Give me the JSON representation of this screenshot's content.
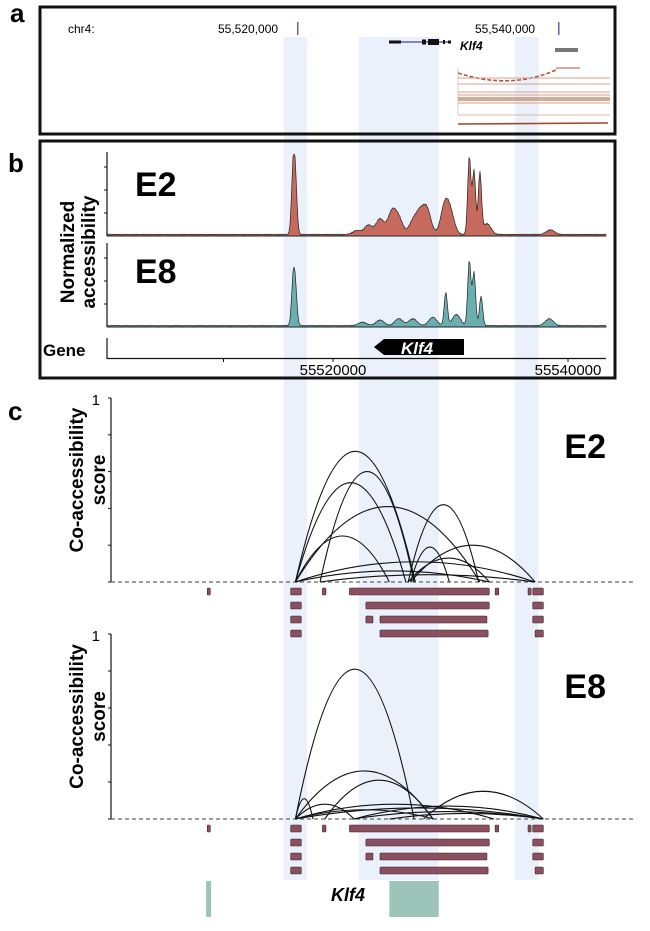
{
  "figure": {
    "panels": [
      "a",
      "b",
      "c"
    ],
    "highlight_color": "#eaf1fa",
    "highlight_regions_bp": [
      [
        55515800,
        55517800
      ],
      [
        55522200,
        55529000
      ],
      [
        55535500,
        55537500
      ]
    ]
  },
  "panel_a": {
    "letter": "a",
    "chrom_label": "chr4:",
    "coord_labels": [
      "55,520,000",
      "55,540,000"
    ],
    "coord_values": [
      55520000,
      55540000
    ],
    "gene_label": "Klf4",
    "track_color": "#b5523b",
    "tick_color": "#6a5fb0"
  },
  "panel_b": {
    "letter": "b",
    "ylabel_line1": "Normalized",
    "ylabel_line2": "accessibility",
    "gene_row_label": "Gene",
    "gene_label": "Klf4",
    "x_ticks": [
      "55520000",
      "55540000"
    ],
    "x_tick_values": [
      55520000,
      55540000
    ],
    "x_range": [
      55510000,
      55544000
    ],
    "tracks": [
      {
        "name": "E2",
        "color": "#c76a5e",
        "peaks": [
          [
            55516600,
            0.78
          ],
          [
            55516800,
            0.65
          ],
          [
            55522000,
            0.05
          ],
          [
            55523000,
            0.12
          ],
          [
            55524000,
            0.2
          ],
          [
            55525000,
            0.28
          ],
          [
            55525600,
            0.2
          ],
          [
            55526800,
            0.16
          ],
          [
            55527400,
            0.25
          ],
          [
            55528000,
            0.31
          ],
          [
            55529500,
            0.35
          ],
          [
            55530000,
            0.25
          ],
          [
            55531600,
            1.0
          ],
          [
            55532000,
            0.82
          ],
          [
            55532500,
            0.78
          ],
          [
            55533100,
            0.14
          ],
          [
            55538500,
            0.06
          ]
        ]
      },
      {
        "name": "E8",
        "color": "#6aaeb0",
        "peaks": [
          [
            55516600,
            0.6
          ],
          [
            55516800,
            0.5
          ],
          [
            55522500,
            0.05
          ],
          [
            55524000,
            0.08
          ],
          [
            55525600,
            0.1
          ],
          [
            55526800,
            0.1
          ],
          [
            55528500,
            0.12
          ],
          [
            55529600,
            0.47
          ],
          [
            55530500,
            0.16
          ],
          [
            55531600,
            0.93
          ],
          [
            55532000,
            0.76
          ],
          [
            55532600,
            0.42
          ],
          [
            55538400,
            0.1
          ]
        ]
      }
    ]
  },
  "panel_c": {
    "letter": "c",
    "ylabel_line1": "Co-accessibility",
    "ylabel_line2": "score",
    "y_top_tick": "1",
    "ylim": [
      0,
      1
    ],
    "y_ticks": [
      0,
      0.2,
      0.4,
      0.6,
      0.8,
      1.0
    ],
    "arc_color": "#111111",
    "peak_color": "#8b5060",
    "plots": [
      {
        "name": "E2",
        "arcs": [
          [
            55516800,
            55527000,
            0.71
          ],
          [
            55516800,
            55526200,
            0.54
          ],
          [
            55518900,
            55526900,
            0.6
          ],
          [
            55516800,
            55532500,
            0.41
          ],
          [
            55516800,
            55524800,
            0.25
          ],
          [
            55526400,
            55532400,
            0.42
          ],
          [
            55526400,
            55533300,
            0.13
          ],
          [
            55526600,
            55537200,
            0.2
          ],
          [
            55516800,
            55537200,
            0.11
          ],
          [
            55516800,
            55533300,
            0.06
          ],
          [
            55518900,
            55537200,
            0.04
          ],
          [
            55526600,
            55529900,
            0.19
          ]
        ],
        "peak_rows": [
          [
            [
              55509300,
              55509500
            ],
            [
              55516400,
              55517300
            ],
            [
              55519100,
              55519400
            ],
            [
              55521400,
              55533300
            ],
            [
              55533800,
              55534100
            ],
            [
              55536600,
              55536800
            ],
            [
              55537000,
              55537900
            ]
          ],
          [
            [
              55516400,
              55517300
            ],
            [
              55522800,
              55533300
            ],
            [
              55537000,
              55537900
            ]
          ],
          [
            [
              55516400,
              55517300
            ],
            [
              55522800,
              55523400
            ],
            [
              55524000,
              55533100
            ],
            [
              55537000,
              55537900
            ]
          ],
          [
            [
              55516400,
              55517300
            ],
            [
              55524000,
              55533200
            ],
            [
              55537200,
              55537900
            ]
          ]
        ]
      },
      {
        "name": "E8",
        "arcs": [
          [
            55516800,
            55526900,
            0.81
          ],
          [
            55516800,
            55528500,
            0.26
          ],
          [
            55519300,
            55528500,
            0.21
          ],
          [
            55516800,
            55518300,
            0.11
          ],
          [
            55516800,
            55521800,
            0.08
          ],
          [
            55516800,
            55533700,
            0.08
          ],
          [
            55516800,
            55537900,
            0.06
          ],
          [
            55521700,
            55537900,
            0.04
          ],
          [
            55527700,
            55537900,
            0.15
          ],
          [
            55521800,
            55537900,
            0.07
          ],
          [
            55516800,
            55528600,
            0.05
          ],
          [
            55524800,
            55537900,
            0.03
          ]
        ],
        "peak_rows": [
          [
            [
              55509300,
              55509500
            ],
            [
              55516400,
              55517300
            ],
            [
              55519100,
              55519400
            ],
            [
              55521400,
              55533300
            ],
            [
              55533800,
              55534100
            ],
            [
              55536600,
              55536800
            ],
            [
              55537000,
              55537900
            ]
          ],
          [
            [
              55516400,
              55517300
            ],
            [
              55522800,
              55533300
            ],
            [
              55537000,
              55537900
            ]
          ],
          [
            [
              55516400,
              55517300
            ],
            [
              55522800,
              55523400
            ],
            [
              55524000,
              55533100
            ],
            [
              55537000,
              55537900
            ]
          ],
          [
            [
              55516400,
              55517300
            ],
            [
              55524000,
              55533200
            ],
            [
              55537200,
              55537900
            ]
          ]
        ]
      }
    ],
    "gene_label": "Klf4",
    "gene_color": "#9dc4b8",
    "gene_blocks": [
      [
        55509200,
        55509600
      ],
      [
        55524800,
        55529000
      ]
    ]
  }
}
